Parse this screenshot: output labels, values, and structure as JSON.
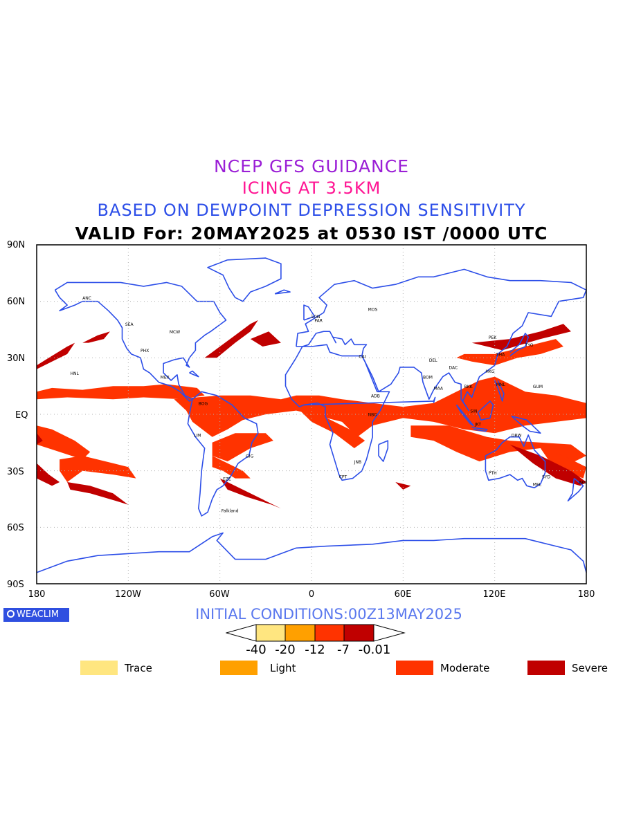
{
  "titles": {
    "line1": "NCEP GFS GUIDANCE",
    "line2": "ICING AT 3.5KM",
    "line3": "BASED ON DEWPOINT DEPRESSION SENSITIVITY",
    "line4": "VALID For: 20MAY2025 at 0530 IST /0000 UTC"
  },
  "axes": {
    "lat_labels": [
      "90N",
      "60N",
      "30N",
      "EQ",
      "30S",
      "60S",
      "90S"
    ],
    "lon_labels": [
      "180",
      "120W",
      "60W",
      "0",
      "60E",
      "120E",
      "180"
    ]
  },
  "logo_text": "WEACLIM",
  "initial_conditions": "INITIAL CONDITIONS:00Z13MAY2025",
  "colorbar": {
    "ticks": [
      "-40",
      "-20",
      "-12",
      "-7",
      "-0.01"
    ],
    "colors": [
      "#ffe680",
      "#ffa000",
      "#ff3300",
      "#c00000"
    ]
  },
  "legend": [
    {
      "label": "Trace",
      "color": "#ffe680"
    },
    {
      "label": "Light",
      "color": "#ffa000"
    },
    {
      "label": "Moderate",
      "color": "#ff3300"
    },
    {
      "label": "Severe",
      "color": "#c00000"
    }
  ],
  "map": {
    "coastline_color": "#2c4ee8",
    "station_labels": [
      "ANC",
      "MCW",
      "PHX",
      "SEA",
      "MEX",
      "BOG",
      "LIM",
      "GIG",
      "EZE",
      "Falkland",
      "LON",
      "PAR",
      "MOS",
      "CAI",
      "ADB",
      "NBO",
      "JNB",
      "CPT",
      "DEL",
      "BOM",
      "MAA",
      "DAC",
      "SIN",
      "JKT",
      "BKK",
      "HKG",
      "MNL",
      "TYO",
      "PEK",
      "SHA",
      "DRW",
      "PTH",
      "SYD",
      "MEL",
      "AKL",
      "GUM",
      "HNL"
    ]
  }
}
